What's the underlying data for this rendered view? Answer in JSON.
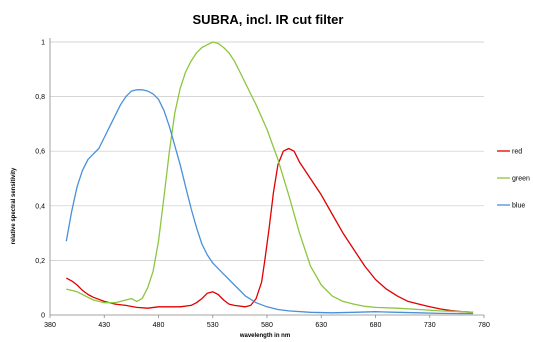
{
  "chart_data": {
    "type": "line",
    "title": "SUBRA, incl. IR cut filter",
    "xlabel": "wavelength in nm",
    "ylabel": "relative spectral sensitivity",
    "xlim": [
      380,
      780
    ],
    "ylim": [
      0,
      1
    ],
    "x_ticks": [
      "380",
      "430",
      "480",
      "530",
      "580",
      "630",
      "680",
      "730",
      "780"
    ],
    "y_ticks": [
      "0",
      "0,2",
      "0,4",
      "0,6",
      "0,8",
      "1"
    ],
    "grid": "horizontal",
    "legend_position": "right",
    "series": [
      {
        "name": "red",
        "color": "#e00000",
        "points": [
          [
            395,
            0.135
          ],
          [
            400,
            0.125
          ],
          [
            405,
            0.11
          ],
          [
            410,
            0.09
          ],
          [
            415,
            0.075
          ],
          [
            420,
            0.065
          ],
          [
            430,
            0.05
          ],
          [
            440,
            0.04
          ],
          [
            450,
            0.035
          ],
          [
            460,
            0.028
          ],
          [
            470,
            0.025
          ],
          [
            480,
            0.03
          ],
          [
            490,
            0.03
          ],
          [
            500,
            0.03
          ],
          [
            510,
            0.035
          ],
          [
            515,
            0.045
          ],
          [
            520,
            0.06
          ],
          [
            525,
            0.08
          ],
          [
            530,
            0.085
          ],
          [
            535,
            0.075
          ],
          [
            540,
            0.055
          ],
          [
            545,
            0.04
          ],
          [
            550,
            0.035
          ],
          [
            560,
            0.03
          ],
          [
            565,
            0.035
          ],
          [
            570,
            0.06
          ],
          [
            575,
            0.12
          ],
          [
            578,
            0.2
          ],
          [
            582,
            0.32
          ],
          [
            586,
            0.45
          ],
          [
            590,
            0.55
          ],
          [
            595,
            0.6
          ],
          [
            600,
            0.61
          ],
          [
            605,
            0.6
          ],
          [
            610,
            0.56
          ],
          [
            620,
            0.5
          ],
          [
            630,
            0.44
          ],
          [
            640,
            0.37
          ],
          [
            650,
            0.3
          ],
          [
            660,
            0.24
          ],
          [
            670,
            0.18
          ],
          [
            680,
            0.13
          ],
          [
            690,
            0.095
          ],
          [
            700,
            0.07
          ],
          [
            710,
            0.05
          ],
          [
            720,
            0.04
          ],
          [
            730,
            0.03
          ],
          [
            740,
            0.022
          ],
          [
            750,
            0.016
          ],
          [
            760,
            0.012
          ],
          [
            770,
            0.01
          ]
        ]
      },
      {
        "name": "green",
        "color": "#8dc63f",
        "points": [
          [
            395,
            0.095
          ],
          [
            400,
            0.09
          ],
          [
            405,
            0.085
          ],
          [
            410,
            0.075
          ],
          [
            415,
            0.065
          ],
          [
            420,
            0.055
          ],
          [
            430,
            0.045
          ],
          [
            440,
            0.045
          ],
          [
            445,
            0.05
          ],
          [
            450,
            0.055
          ],
          [
            455,
            0.06
          ],
          [
            460,
            0.05
          ],
          [
            465,
            0.06
          ],
          [
            470,
            0.1
          ],
          [
            475,
            0.16
          ],
          [
            480,
            0.27
          ],
          [
            485,
            0.43
          ],
          [
            490,
            0.6
          ],
          [
            495,
            0.74
          ],
          [
            500,
            0.83
          ],
          [
            505,
            0.89
          ],
          [
            510,
            0.93
          ],
          [
            515,
            0.96
          ],
          [
            520,
            0.98
          ],
          [
            525,
            0.99
          ],
          [
            530,
            1.0
          ],
          [
            535,
            0.995
          ],
          [
            540,
            0.98
          ],
          [
            545,
            0.96
          ],
          [
            550,
            0.93
          ],
          [
            555,
            0.89
          ],
          [
            560,
            0.85
          ],
          [
            570,
            0.77
          ],
          [
            580,
            0.68
          ],
          [
            590,
            0.57
          ],
          [
            600,
            0.44
          ],
          [
            610,
            0.3
          ],
          [
            620,
            0.18
          ],
          [
            630,
            0.11
          ],
          [
            640,
            0.07
          ],
          [
            650,
            0.05
          ],
          [
            660,
            0.04
          ],
          [
            670,
            0.032
          ],
          [
            680,
            0.028
          ],
          [
            700,
            0.025
          ],
          [
            720,
            0.02
          ],
          [
            740,
            0.015
          ],
          [
            760,
            0.012
          ],
          [
            770,
            0.01
          ]
        ]
      },
      {
        "name": "blue",
        "color": "#4a90d9",
        "points": [
          [
            395,
            0.27
          ],
          [
            400,
            0.38
          ],
          [
            405,
            0.47
          ],
          [
            410,
            0.53
          ],
          [
            415,
            0.57
          ],
          [
            420,
            0.59
          ],
          [
            425,
            0.61
          ],
          [
            430,
            0.65
          ],
          [
            435,
            0.69
          ],
          [
            440,
            0.73
          ],
          [
            445,
            0.77
          ],
          [
            450,
            0.8
          ],
          [
            455,
            0.82
          ],
          [
            460,
            0.825
          ],
          [
            465,
            0.825
          ],
          [
            470,
            0.82
          ],
          [
            475,
            0.81
          ],
          [
            480,
            0.79
          ],
          [
            485,
            0.75
          ],
          [
            490,
            0.69
          ],
          [
            495,
            0.62
          ],
          [
            500,
            0.55
          ],
          [
            505,
            0.47
          ],
          [
            510,
            0.39
          ],
          [
            515,
            0.32
          ],
          [
            520,
            0.26
          ],
          [
            525,
            0.22
          ],
          [
            530,
            0.19
          ],
          [
            535,
            0.17
          ],
          [
            540,
            0.15
          ],
          [
            545,
            0.13
          ],
          [
            550,
            0.11
          ],
          [
            555,
            0.09
          ],
          [
            560,
            0.07
          ],
          [
            570,
            0.045
          ],
          [
            580,
            0.03
          ],
          [
            590,
            0.02
          ],
          [
            600,
            0.015
          ],
          [
            620,
            0.01
          ],
          [
            640,
            0.008
          ],
          [
            660,
            0.01
          ],
          [
            680,
            0.012
          ],
          [
            700,
            0.01
          ],
          [
            720,
            0.008
          ],
          [
            740,
            0.006
          ],
          [
            770,
            0.005
          ]
        ]
      }
    ]
  }
}
